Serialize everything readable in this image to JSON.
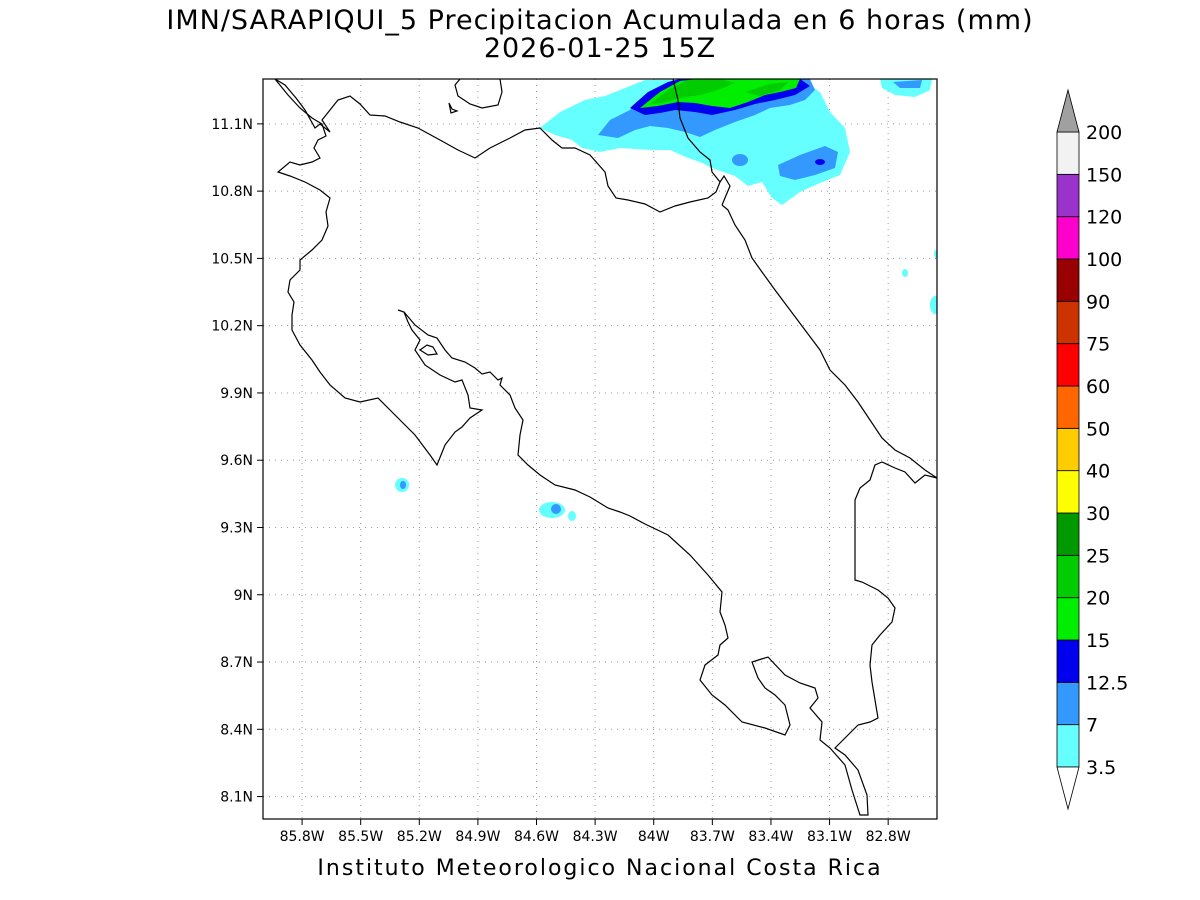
{
  "title": {
    "line1": "IMN/SARAPIQUI_5 Precipitacion Acumulada en 6 horas (mm)",
    "line2": "2026-01-25 15Z"
  },
  "credit": "Instituto Meteorologico Nacional Costa Rica",
  "map": {
    "lon_range": [
      -86.0,
      -82.55
    ],
    "lat_range": [
      8.0,
      11.3
    ],
    "lon_ticks": [
      {
        "value": -85.8,
        "label": "85.8W"
      },
      {
        "value": -85.5,
        "label": "85.5W"
      },
      {
        "value": -85.2,
        "label": "85.2W"
      },
      {
        "value": -84.9,
        "label": "84.9W"
      },
      {
        "value": -84.6,
        "label": "84.6W"
      },
      {
        "value": -84.3,
        "label": "84.3W"
      },
      {
        "value": -84.0,
        "label": "84W"
      },
      {
        "value": -83.7,
        "label": "83.7W"
      },
      {
        "value": -83.4,
        "label": "83.4W"
      },
      {
        "value": -83.1,
        "label": "83.1W"
      },
      {
        "value": -82.8,
        "label": "82.8W"
      }
    ],
    "lat_ticks": [
      {
        "value": 11.1,
        "label": "11.1N"
      },
      {
        "value": 10.8,
        "label": "10.8N"
      },
      {
        "value": 10.5,
        "label": "10.5N"
      },
      {
        "value": 10.2,
        "label": "10.2N"
      },
      {
        "value": 9.9,
        "label": "9.9N"
      },
      {
        "value": 9.6,
        "label": "9.6N"
      },
      {
        "value": 9.3,
        "label": "9.3N"
      },
      {
        "value": 9.0,
        "label": "9N"
      },
      {
        "value": 8.7,
        "label": "8.7N"
      },
      {
        "value": 8.4,
        "label": "8.4N"
      },
      {
        "value": 8.1,
        "label": "8.1N"
      }
    ],
    "grid": "dotted"
  },
  "colorbar": {
    "labels": [
      "3.5",
      "7",
      "12.5",
      "15",
      "20",
      "25",
      "30",
      "40",
      "50",
      "60",
      "75",
      "90",
      "100",
      "120",
      "150",
      "200"
    ],
    "colors": [
      "#66ffff",
      "#3399ff",
      "#0000ee",
      "#00ee00",
      "#00cc00",
      "#009900",
      "#ffff00",
      "#ffcc00",
      "#ff6600",
      "#ff0000",
      "#cc3300",
      "#990000",
      "#ff00cc",
      "#9933cc",
      "#f2f2f2"
    ],
    "over_color": "#a0a0a0",
    "under_color": "#ffffff"
  }
}
